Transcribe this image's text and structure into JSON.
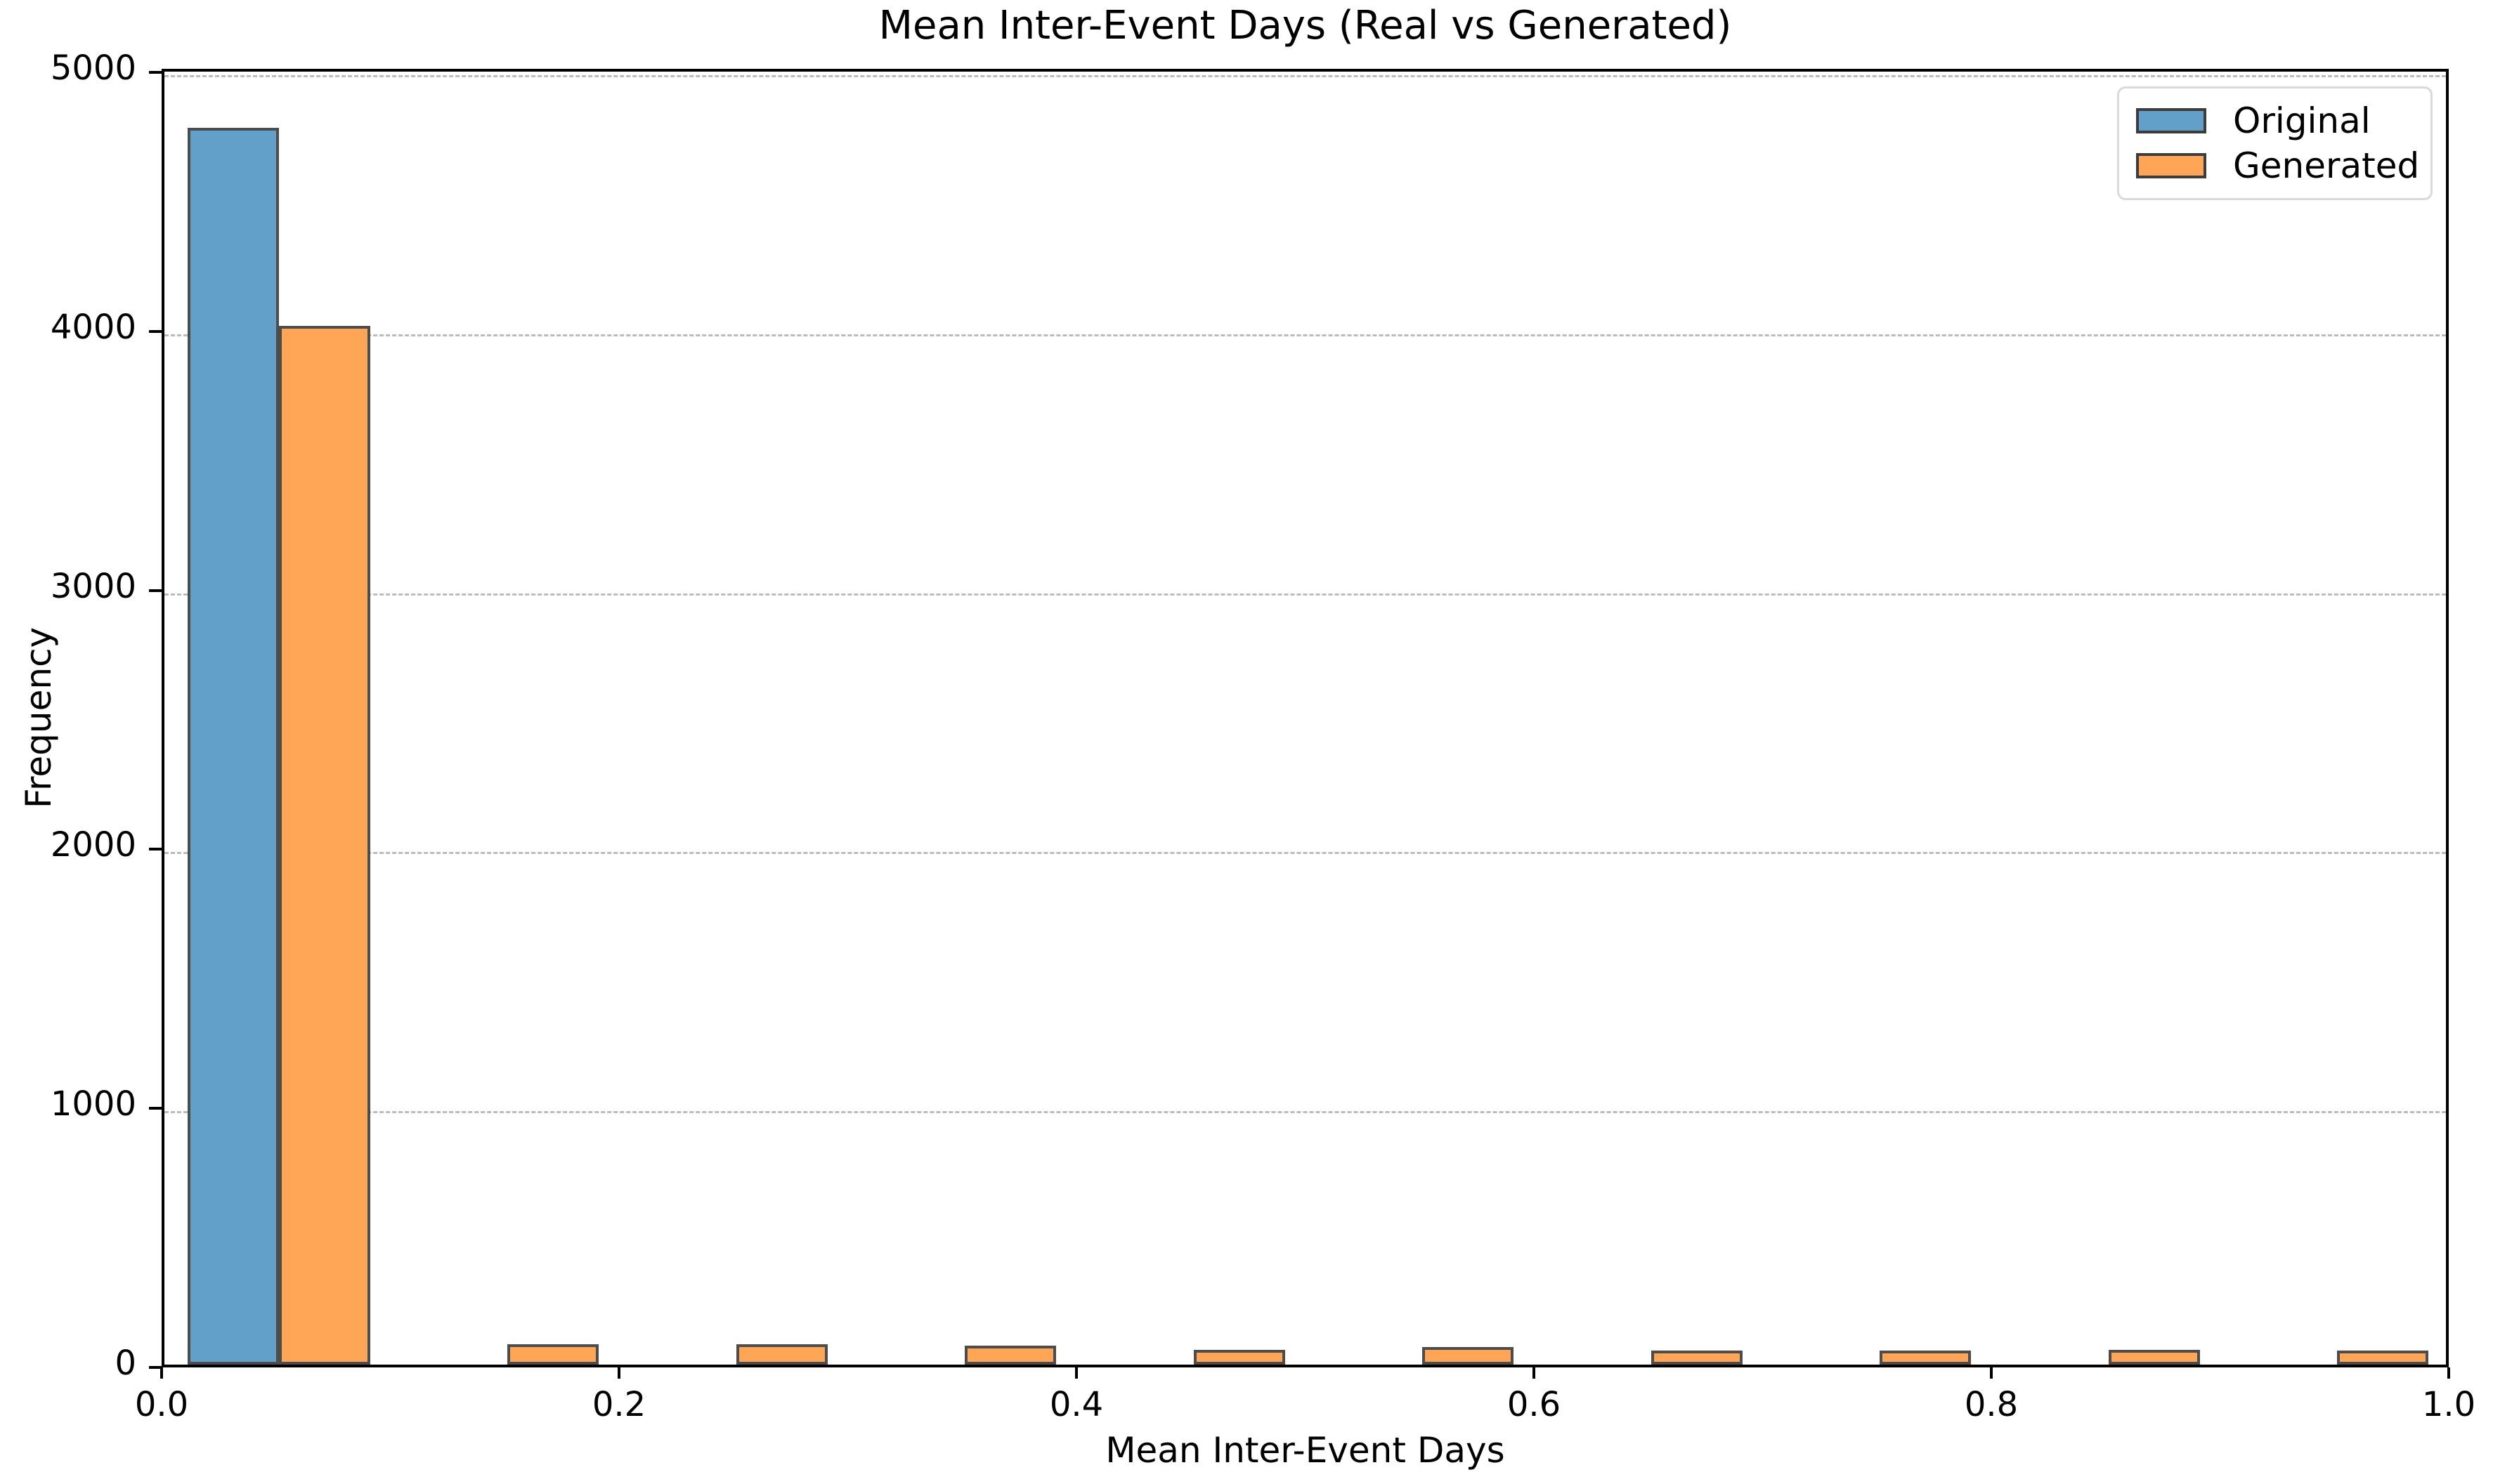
{
  "title": "Mean Inter-Event Days (Real vs Generated)",
  "colors": {
    "original_fill": "#62A0CA",
    "generated_fill": "#FFA556",
    "bar_edge": "#4C4C4C",
    "grid": "#BCBCBC",
    "legend_border": "#D9D9D9",
    "axis": "#000000"
  },
  "legend": {
    "items": [
      {
        "label": "Original",
        "series": "Original"
      },
      {
        "label": "Generated",
        "series": "Generated"
      }
    ]
  },
  "chart_data": {
    "type": "bar",
    "subtype": "histogram-grouped",
    "title": "Mean Inter-Event Days (Real vs Generated)",
    "xlabel": "Mean Inter-Event Days",
    "ylabel": "Frequency",
    "xlim": [
      0.0,
      1.0
    ],
    "ylim": [
      0,
      5000
    ],
    "grid": "horizontal-dashed",
    "legend_position": "upper right",
    "bin_edges": [
      0.0,
      0.1,
      0.2,
      0.3,
      0.4,
      0.5,
      0.6,
      0.7,
      0.8,
      0.9,
      1.0
    ],
    "series": [
      {
        "name": "Original",
        "values": [
          4775,
          0,
          0,
          0,
          0,
          0,
          0,
          0,
          0,
          0
        ]
      },
      {
        "name": "Generated",
        "values": [
          4010,
          80,
          78,
          73,
          58,
          68,
          54,
          55,
          57,
          54
        ]
      }
    ],
    "x_ticks": [
      {
        "v": 0.0,
        "label": "0.0"
      },
      {
        "v": 0.2,
        "label": "0.2"
      },
      {
        "v": 0.4,
        "label": "0.4"
      },
      {
        "v": 0.6,
        "label": "0.6"
      },
      {
        "v": 0.8,
        "label": "0.8"
      },
      {
        "v": 1.0,
        "label": "1.0"
      }
    ],
    "y_ticks": [
      {
        "v": 0,
        "label": "0"
      },
      {
        "v": 1000,
        "label": "1000"
      },
      {
        "v": 2000,
        "label": "2000"
      },
      {
        "v": 3000,
        "label": "3000"
      },
      {
        "v": 4000,
        "label": "4000"
      },
      {
        "v": 5000,
        "label": "5000"
      }
    ]
  }
}
